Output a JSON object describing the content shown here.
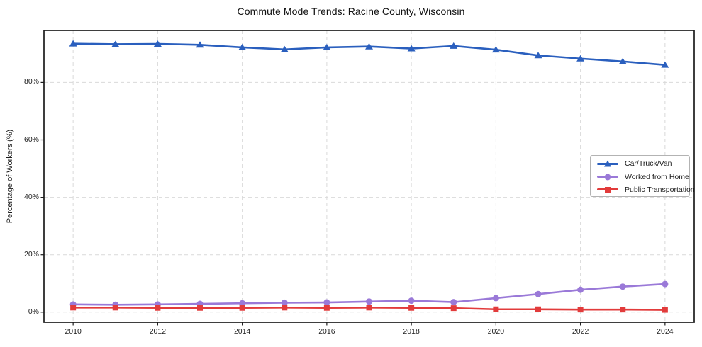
{
  "window": {
    "title": "Commute Mode Trends: Racine County, Wisconsin"
  },
  "chart_data": {
    "type": "line",
    "title": "Commute Mode Trends: Racine County, Wisconsin",
    "xlabel": "",
    "ylabel": "Percentage of Workers (%)",
    "x": [
      2010,
      2011,
      2012,
      2013,
      2014,
      2015,
      2016,
      2017,
      2018,
      2019,
      2020,
      2021,
      2022,
      2023,
      2024
    ],
    "series": [
      {
        "name": "Car/Truck/Van",
        "color": "#2a5fbe",
        "marker": "triangle",
        "values": [
          93.5,
          93.3,
          93.4,
          93.1,
          92.2,
          91.5,
          92.2,
          92.5,
          91.8,
          92.7,
          91.4,
          89.4,
          88.3,
          87.3,
          86.1
        ]
      },
      {
        "name": "Worked from Home",
        "color": "#9a79d8",
        "marker": "circle",
        "values": [
          2.7,
          2.6,
          2.7,
          2.9,
          3.1,
          3.3,
          3.4,
          3.7,
          4.0,
          3.5,
          4.9,
          6.3,
          7.8,
          8.9,
          9.8
        ]
      },
      {
        "name": "Public Transportation",
        "color": "#e23b3b",
        "marker": "square",
        "values": [
          1.6,
          1.6,
          1.5,
          1.5,
          1.5,
          1.6,
          1.5,
          1.6,
          1.5,
          1.4,
          1.0,
          1.0,
          0.9,
          0.9,
          0.8
        ]
      }
    ],
    "xlim": [
      2009.31,
      2024.69
    ],
    "ylim": [
      -3.5,
      98.1
    ],
    "xticks": {
      "values": [
        2010,
        2012,
        2014,
        2016,
        2018,
        2020,
        2022,
        2024
      ],
      "labels": [
        "2010",
        "2012",
        "2014",
        "2016",
        "2018",
        "2020",
        "2022",
        "2024"
      ]
    },
    "yticks": {
      "values": [
        0,
        20,
        40,
        60,
        80
      ],
      "labels": [
        "0%",
        "20%",
        "40%",
        "60%",
        "80%"
      ]
    },
    "grid": true,
    "grid_style": "dashed",
    "legend_position": "center-right"
  }
}
